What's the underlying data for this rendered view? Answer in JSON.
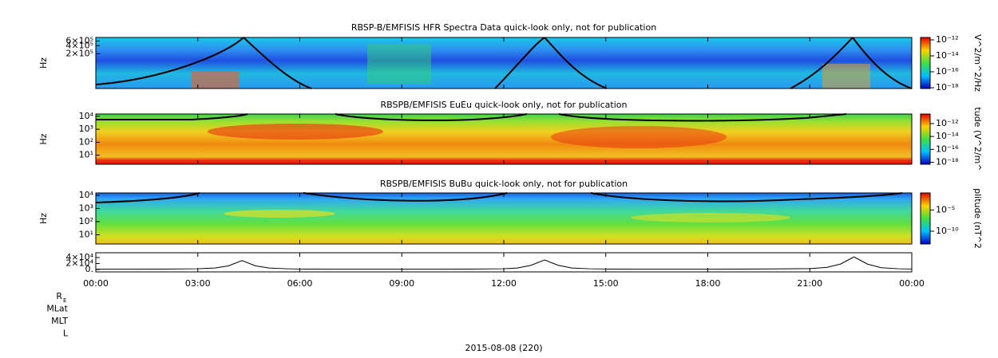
{
  "chart_data": [
    {
      "type": "heatmap",
      "title": "RBSP-B/EMFISIS  HFR Spectra Data quick-look only, not for publication",
      "ylabel": "Hz",
      "log_y": true,
      "xlim": [
        0,
        24
      ],
      "ylim": [
        10000,
        810000
      ],
      "yticks": [
        {
          "value": 600000,
          "label": "6×10⁵"
        },
        {
          "value": 400000,
          "label": "4×10⁵"
        },
        {
          "value": 200000,
          "label": "2×10⁵"
        }
      ],
      "colorbar": {
        "label": "V^2/m^2/Hz",
        "log": true,
        "lim": [
          8e-19,
          2e-12
        ],
        "ticks": [
          {
            "value": 1e-12,
            "label": "10⁻¹²"
          },
          {
            "value": 1e-14,
            "label": "10⁻¹⁴"
          },
          {
            "value": 1e-16,
            "label": "10⁻¹⁶"
          },
          {
            "value": 1e-18,
            "label": "10⁻¹⁸"
          }
        ]
      }
    },
    {
      "type": "heatmap",
      "title": "RBSPB/EMFISIS  EuEu quick-look only, not for publication",
      "ylabel": "Hz",
      "log_y": true,
      "xlim": [
        0,
        24
      ],
      "ylim": [
        2,
        15000
      ],
      "yticks": [
        {
          "value": 10000,
          "label": "10⁴"
        },
        {
          "value": 1000,
          "label": "10³"
        },
        {
          "value": 100,
          "label": "10²"
        },
        {
          "value": 10,
          "label": "10¹"
        }
      ],
      "colorbar": {
        "label": "tude (V^2/m^",
        "log": true,
        "lim": [
          5e-19,
          3e-11
        ],
        "ticks": [
          {
            "value": 1e-12,
            "label": "10⁻¹²"
          },
          {
            "value": 1e-14,
            "label": "10⁻¹⁴"
          },
          {
            "value": 1e-16,
            "label": "10⁻¹⁶"
          },
          {
            "value": 1e-18,
            "label": "10⁻¹⁸"
          }
        ]
      }
    },
    {
      "type": "heatmap",
      "title": "RBSPB/EMFISIS  BuBu quick-look only, not for publication",
      "ylabel": "Hz",
      "log_y": true,
      "xlim": [
        0,
        24
      ],
      "ylim": [
        2,
        15000
      ],
      "yticks": [
        {
          "value": 10000,
          "label": "10⁴"
        },
        {
          "value": 1000,
          "label": "10³"
        },
        {
          "value": 100,
          "label": "10²"
        },
        {
          "value": 10,
          "label": "10¹"
        }
      ],
      "colorbar": {
        "label": "plitude (nT^2",
        "log": true,
        "lim": [
          1e-13,
          0.1
        ],
        "ticks": [
          {
            "value": 1e-05,
            "label": "10⁻⁵"
          },
          {
            "value": 1e-10,
            "label": "10⁻¹⁰"
          }
        ]
      }
    },
    {
      "type": "line",
      "color": "#000000",
      "xlim": [
        0,
        24
      ],
      "ylim": [
        -8000,
        56000
      ],
      "yticks": [
        {
          "value": 40000,
          "label": "4×10⁴"
        },
        {
          "value": 20000,
          "label": "2×10⁴"
        },
        {
          "value": 0,
          "label": "0."
        }
      ],
      "xticks": [
        {
          "value": 0,
          "label": "00:00"
        },
        {
          "value": 3,
          "label": "03:00"
        },
        {
          "value": 6,
          "label": "06:00"
        },
        {
          "value": 9,
          "label": "09:00"
        },
        {
          "value": 12,
          "label": "12:00"
        },
        {
          "value": 15,
          "label": "15:00"
        },
        {
          "value": 18,
          "label": "18:00"
        },
        {
          "value": 21,
          "label": "21:00"
        },
        {
          "value": 24,
          "label": "00:00"
        }
      ],
      "x": [
        0,
        1,
        2,
        3,
        3.5,
        3.9,
        4.3,
        4.7,
        5.1,
        5.6,
        6,
        7,
        8,
        9,
        10,
        11,
        12,
        12.4,
        12.8,
        13.2,
        13.6,
        14,
        14.5,
        15,
        16,
        17,
        18,
        19,
        20,
        21,
        21.5,
        21.9,
        22.3,
        22.7,
        23.1,
        23.6,
        24
      ],
      "values": [
        1000,
        1000,
        1200,
        2500,
        5000,
        12000,
        30000,
        12000,
        5000,
        2500,
        1500,
        1000,
        1000,
        1000,
        1000,
        1200,
        2500,
        5000,
        14000,
        32000,
        14000,
        5000,
        2500,
        1500,
        1000,
        1000,
        1000,
        1200,
        2000,
        3000,
        7000,
        18000,
        42000,
        18000,
        6000,
        2500,
        1500
      ]
    }
  ],
  "footer": {
    "ephemeris": [
      "R",
      "MLat",
      "MLT",
      "L"
    ],
    "subscript": "E",
    "date": "2015-08-08 (220)"
  }
}
